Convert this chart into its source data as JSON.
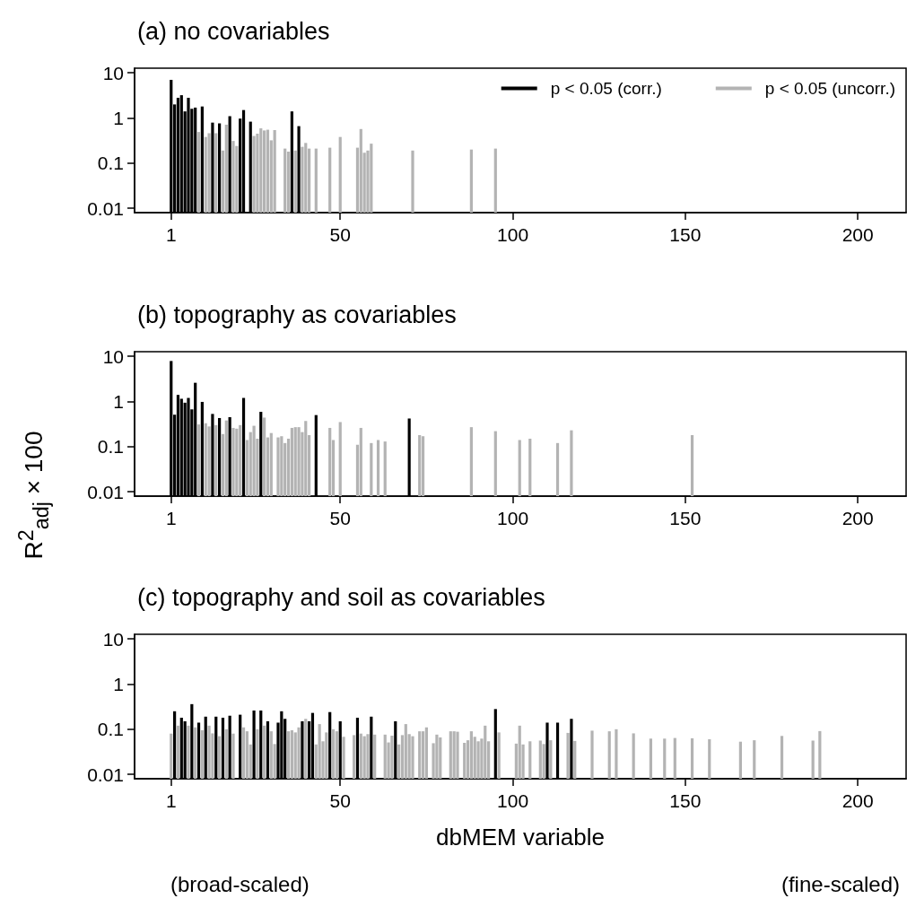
{
  "chart_data": [
    {
      "type": "bar",
      "title": "(a) no covariables",
      "xlim": [
        -9.6,
        214
      ],
      "xticks": [
        1,
        50,
        100,
        150,
        200
      ],
      "ylim": [
        0.008,
        12.7
      ],
      "yticks": [
        0.01,
        0.1,
        1,
        10
      ],
      "log": "y",
      "legend": "top right",
      "series": [
        {
          "name": "p < 0.05 (corr.)",
          "color": "#000000",
          "x": [
            1,
            2,
            3,
            4,
            5,
            6,
            7,
            8,
            10,
            13,
            15,
            18,
            21,
            22,
            24,
            36,
            38
          ],
          "values": [
            7,
            2.0,
            2.8,
            3.2,
            1.4,
            2.8,
            1.6,
            1.7,
            1.8,
            0.79,
            0.76,
            1.1,
            0.97,
            1.5,
            0.83,
            1.4,
            0.66
          ]
        },
        {
          "name": "p < 0.05 (uncorr.)",
          "color": "#b3b3b3",
          "x": [
            9,
            11,
            12,
            14,
            16,
            17,
            19,
            20,
            25,
            26,
            27,
            28,
            29,
            30,
            31,
            34,
            35,
            37,
            39,
            40,
            41,
            43,
            47,
            50,
            55,
            56,
            57,
            58,
            59,
            71,
            88,
            95
          ],
          "values": [
            0.49,
            0.38,
            0.46,
            0.46,
            0.19,
            0.71,
            0.31,
            0.24,
            0.4,
            0.45,
            0.59,
            0.53,
            0.55,
            0.32,
            0.54,
            0.21,
            0.18,
            0.19,
            0.23,
            0.28,
            0.21,
            0.21,
            0.22,
            0.38,
            0.22,
            0.57,
            0.17,
            0.19,
            0.27,
            0.19,
            0.2,
            0.21
          ]
        }
      ]
    },
    {
      "type": "bar",
      "title": "(b) topography as covariables",
      "ylabel": "R$^{2}$$_{adj}$ × 100",
      "xlim": [
        -9.6,
        214
      ],
      "xticks": [
        1,
        50,
        100,
        150,
        200
      ],
      "ylim": [
        0.008,
        12.7
      ],
      "yticks": [
        0.01,
        0.1,
        1,
        10
      ],
      "log": "y",
      "series": [
        {
          "color": "#000000",
          "x": [
            1,
            2,
            3,
            4,
            5,
            6,
            7,
            8,
            10,
            13,
            15,
            18,
            22,
            27,
            43,
            70
          ],
          "values": [
            7.9,
            0.51,
            1.4,
            1.15,
            0.94,
            1.2,
            0.67,
            2.6,
            0.98,
            0.53,
            0.43,
            0.45,
            1.2,
            0.59,
            0.5,
            0.42
          ]
        },
        {
          "color": "#b3b3b3",
          "x": [
            9,
            11,
            12,
            14,
            16,
            17,
            19,
            20,
            21,
            23,
            24,
            25,
            26,
            28,
            29,
            30,
            32,
            33,
            34,
            35,
            36,
            37,
            38,
            39,
            40,
            41,
            47,
            48,
            50,
            55,
            56,
            59,
            61,
            63,
            73,
            74,
            88,
            95,
            102,
            105,
            113,
            117,
            152
          ],
          "values": [
            0.31,
            0.33,
            0.28,
            0.3,
            0.19,
            0.38,
            0.26,
            0.25,
            0.3,
            0.14,
            0.21,
            0.29,
            0.15,
            0.44,
            0.16,
            0.2,
            0.16,
            0.17,
            0.12,
            0.15,
            0.26,
            0.27,
            0.27,
            0.21,
            0.37,
            0.18,
            0.26,
            0.14,
            0.35,
            0.11,
            0.26,
            0.12,
            0.14,
            0.13,
            0.18,
            0.17,
            0.27,
            0.22,
            0.14,
            0.15,
            0.12,
            0.23,
            0.18
          ]
        }
      ]
    },
    {
      "type": "bar",
      "title": "(c) topography and soil as covariables",
      "xlabel": "dbMEM variable",
      "annotations": [
        "(broad-scaled)",
        "(fine-scaled)"
      ],
      "xlim": [
        -9.6,
        214
      ],
      "xticks": [
        1,
        50,
        100,
        150,
        200
      ],
      "ylim": [
        0.008,
        12.7
      ],
      "yticks": [
        0.01,
        0.1,
        1,
        10
      ],
      "log": "y",
      "series": [
        {
          "color": "#000000",
          "x": [
            2,
            4,
            5,
            7,
            9,
            11,
            14,
            16,
            18,
            21,
            25,
            27,
            29,
            32,
            33,
            34,
            39,
            41,
            42,
            47,
            50,
            55,
            59,
            66,
            95,
            110,
            113,
            117
          ],
          "values": [
            0.25,
            0.18,
            0.15,
            0.36,
            0.14,
            0.19,
            0.19,
            0.18,
            0.2,
            0.21,
            0.26,
            0.26,
            0.15,
            0.14,
            0.25,
            0.17,
            0.15,
            0.15,
            0.23,
            0.24,
            0.15,
            0.18,
            0.19,
            0.15,
            0.28,
            0.14,
            0.14,
            0.17
          ]
        },
        {
          "color": "#b3b3b3",
          "x": [
            1,
            3,
            6,
            8,
            10,
            12,
            13,
            15,
            17,
            19,
            22,
            23,
            24,
            26,
            28,
            30,
            31,
            35,
            36,
            37,
            38,
            40,
            43,
            44,
            45,
            46,
            48,
            49,
            51,
            54,
            56,
            57,
            58,
            60,
            63,
            64,
            65,
            67,
            68,
            69,
            70,
            71,
            73,
            74,
            75,
            77,
            78,
            79,
            82,
            83,
            84,
            86,
            87,
            88,
            89,
            90,
            91,
            92,
            93,
            96,
            101,
            102,
            103,
            105,
            108,
            109,
            111,
            116,
            118,
            123,
            128,
            130,
            135,
            140,
            144,
            147,
            152,
            157,
            166,
            170,
            178,
            187,
            189
          ],
          "values": [
            0.08,
            0.12,
            0.12,
            0.11,
            0.095,
            0.12,
            0.081,
            0.07,
            0.1,
            0.08,
            0.11,
            0.09,
            0.046,
            0.1,
            0.12,
            0.09,
            0.047,
            0.09,
            0.095,
            0.085,
            0.11,
            0.17,
            0.046,
            0.13,
            0.054,
            0.085,
            0.1,
            0.09,
            0.068,
            0.074,
            0.08,
            0.07,
            0.078,
            0.076,
            0.076,
            0.051,
            0.072,
            0.046,
            0.074,
            0.13,
            0.078,
            0.07,
            0.09,
            0.09,
            0.11,
            0.049,
            0.076,
            0.066,
            0.09,
            0.09,
            0.088,
            0.05,
            0.057,
            0.09,
            0.068,
            0.054,
            0.062,
            0.12,
            0.054,
            0.085,
            0.048,
            0.12,
            0.046,
            0.054,
            0.056,
            0.047,
            0.057,
            0.083,
            0.055,
            0.093,
            0.09,
            0.1,
            0.081,
            0.062,
            0.062,
            0.064,
            0.063,
            0.06,
            0.053,
            0.057,
            0.071,
            0.056,
            0.091
          ]
        }
      ]
    }
  ]
}
